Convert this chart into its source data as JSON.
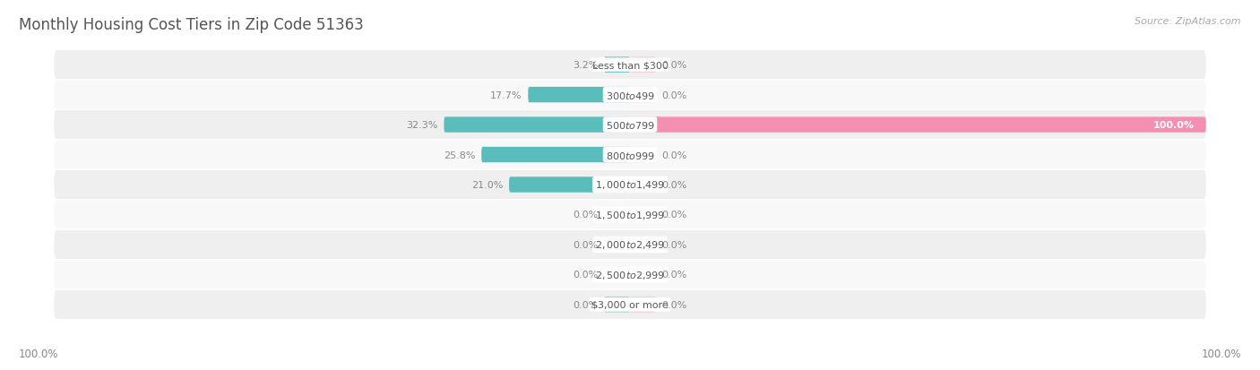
{
  "title": "Monthly Housing Cost Tiers in Zip Code 51363",
  "source": "Source: ZipAtlas.com",
  "categories": [
    "Less than $300",
    "$300 to $499",
    "$500 to $799",
    "$800 to $999",
    "$1,000 to $1,499",
    "$1,500 to $1,999",
    "$2,000 to $2,499",
    "$2,500 to $2,999",
    "$3,000 or more"
  ],
  "owner_values": [
    3.2,
    17.7,
    32.3,
    25.8,
    21.0,
    0.0,
    0.0,
    0.0,
    0.0
  ],
  "renter_values": [
    0.0,
    0.0,
    100.0,
    0.0,
    0.0,
    0.0,
    0.0,
    0.0,
    0.0
  ],
  "owner_color": "#5BBCBC",
  "renter_color": "#F48FB1",
  "owner_stub_color": "#90D0D0",
  "renter_stub_color": "#F9C0D4",
  "row_bg_even": "#EFEFEF",
  "row_bg_odd": "#F8F8F8",
  "max_val": 100.0,
  "min_stub": 4.5,
  "bar_height": 0.52,
  "title_fontsize": 12,
  "label_fontsize": 8.0,
  "value_fontsize": 8.0,
  "footer_fontsize": 8.5,
  "source_fontsize": 8.0,
  "text_color": "#888888",
  "label_color": "#555555"
}
